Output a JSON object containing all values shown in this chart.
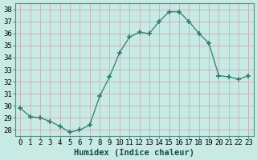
{
  "x": [
    0,
    1,
    2,
    3,
    4,
    5,
    6,
    7,
    8,
    9,
    10,
    11,
    12,
    13,
    14,
    15,
    16,
    17,
    18,
    19,
    20,
    21,
    22,
    23
  ],
  "y": [
    29.8,
    29.1,
    29.0,
    28.7,
    28.3,
    27.8,
    28.0,
    28.4,
    30.8,
    32.4,
    34.4,
    35.7,
    36.1,
    36.0,
    37.0,
    37.8,
    37.8,
    37.0,
    36.0,
    35.2,
    32.5,
    32.4,
    32.2,
    32.5
  ],
  "line_color": "#2e7d6e",
  "marker": "+",
  "marker_size": 4,
  "background_color": "#c8eae5",
  "grid_color": "#c8aeb4",
  "xlabel": "Humidex (Indice chaleur)",
  "ylabel_ticks": [
    28,
    29,
    30,
    31,
    32,
    33,
    34,
    35,
    36,
    37,
    38
  ],
  "ylim": [
    27.5,
    38.5
  ],
  "xlim": [
    -0.5,
    23.5
  ],
  "tick_fontsize": 6.5,
  "xlabel_fontsize": 7.5
}
